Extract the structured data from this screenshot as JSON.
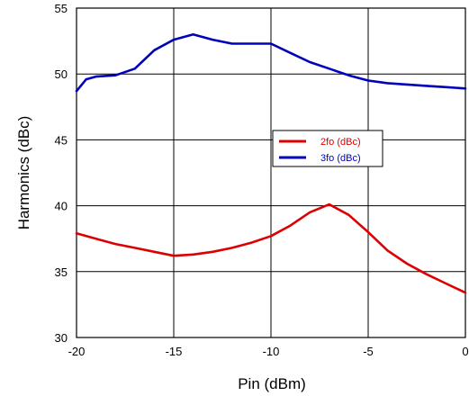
{
  "chart_data": {
    "type": "line",
    "xlabel": "Pin (dBm)",
    "ylabel": "Harmonics (dBc)",
    "xlim": [
      -20,
      0
    ],
    "ylim": [
      30,
      55
    ],
    "x_ticks": [
      "-20",
      "-15",
      "-10",
      "-5",
      "0"
    ],
    "y_ticks": [
      "55",
      "50",
      "45",
      "40",
      "35",
      "30"
    ],
    "x_tick_values": [
      -20,
      -15,
      -10,
      -5,
      0
    ],
    "y_tick_values": [
      55,
      50,
      45,
      40,
      35,
      30
    ],
    "grid": true,
    "legend_position": "center-right",
    "series": [
      {
        "name": "2fo (dBc)",
        "color": "#dd0000",
        "points": [
          [
            -20,
            37.9
          ],
          [
            -19,
            37.5
          ],
          [
            -18,
            37.1
          ],
          [
            -17,
            36.8
          ],
          [
            -16,
            36.5
          ],
          [
            -15,
            36.2
          ],
          [
            -14,
            36.3
          ],
          [
            -13,
            36.5
          ],
          [
            -12,
            36.8
          ],
          [
            -11,
            37.2
          ],
          [
            -10,
            37.7
          ],
          [
            -9,
            38.5
          ],
          [
            -8,
            39.5
          ],
          [
            -7,
            40.1
          ],
          [
            -6,
            39.3
          ],
          [
            -5,
            38.0
          ],
          [
            -4,
            36.6
          ],
          [
            -3,
            35.6
          ],
          [
            -2,
            34.8
          ],
          [
            -1,
            34.1
          ],
          [
            0,
            33.4
          ]
        ]
      },
      {
        "name": "3fo (dBc)",
        "color": "#0000bb",
        "points": [
          [
            -20,
            48.7
          ],
          [
            -19.5,
            49.6
          ],
          [
            -19,
            49.8
          ],
          [
            -18,
            49.9
          ],
          [
            -17,
            50.4
          ],
          [
            -16,
            51.8
          ],
          [
            -15,
            52.6
          ],
          [
            -14,
            53.0
          ],
          [
            -13,
            52.6
          ],
          [
            -12,
            52.3
          ],
          [
            -11,
            52.3
          ],
          [
            -10,
            52.3
          ],
          [
            -9,
            51.6
          ],
          [
            -8,
            50.9
          ],
          [
            -7,
            50.4
          ],
          [
            -6,
            49.9
          ],
          [
            -5,
            49.5
          ],
          [
            -4,
            49.3
          ],
          [
            -3,
            49.2
          ],
          [
            -2,
            49.1
          ],
          [
            -1,
            49.0
          ],
          [
            0,
            48.9
          ]
        ]
      }
    ]
  }
}
